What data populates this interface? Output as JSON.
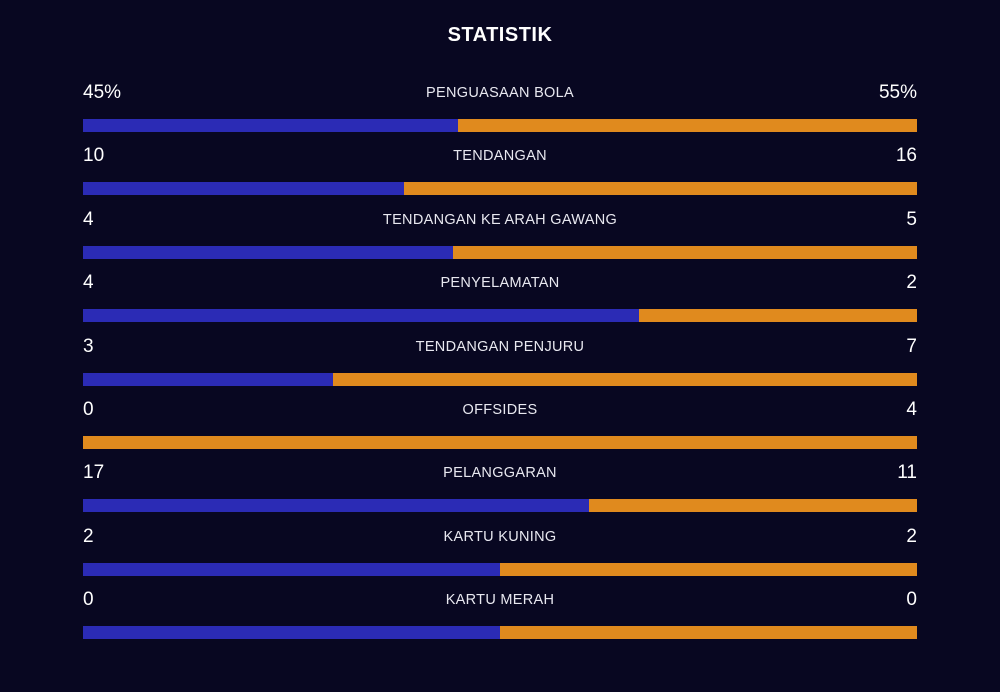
{
  "header": {
    "title": "STATISTIK"
  },
  "colors": {
    "background": "#080721",
    "home": "#2b2bb5",
    "away": "#e08a1e"
  },
  "stats": [
    {
      "label": "PENGUASAAN BOLA",
      "home": "45%",
      "away": "55%",
      "home_share": 0.45
    },
    {
      "label": "TENDANGAN",
      "home": "10",
      "away": "16",
      "home_share": 0.385
    },
    {
      "label": "TENDANGAN KE ARAH GAWANG",
      "home": "4",
      "away": "5",
      "home_share": 0.444
    },
    {
      "label": "PENYELAMATAN",
      "home": "4",
      "away": "2",
      "home_share": 0.667
    },
    {
      "label": "TENDANGAN PENJURU",
      "home": "3",
      "away": "7",
      "home_share": 0.3
    },
    {
      "label": "OFFSIDES",
      "home": "0",
      "away": "4",
      "home_share": 0
    },
    {
      "label": "PELANGGARAN",
      "home": "17",
      "away": "11",
      "home_share": 0.607
    },
    {
      "label": "KARTU KUNING",
      "home": "2",
      "away": "2",
      "home_share": 0.5
    },
    {
      "label": "KARTU MERAH",
      "home": "0",
      "away": "0",
      "home_share": 0.5
    }
  ]
}
